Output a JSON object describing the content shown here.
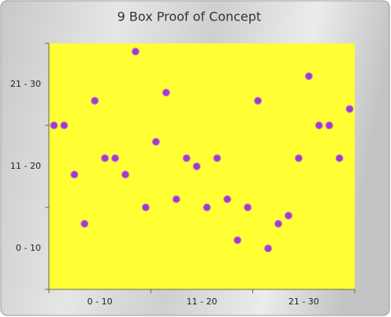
{
  "chart_data": {
    "type": "scatter",
    "title": "9 Box Proof of Concept",
    "x": [
      0.5,
      1.5,
      2.5,
      3.5,
      4.5,
      5.5,
      6.5,
      7.5,
      8.5,
      9.5,
      10.5,
      11.5,
      12.5,
      13.5,
      14.5,
      15.5,
      16.5,
      17.5,
      18.5,
      19.5,
      20.5,
      21.5,
      22.5,
      23.5,
      24.5,
      25.5,
      26.5,
      27.5,
      28.5,
      29.5
    ],
    "values": [
      20,
      20,
      14,
      8,
      23,
      16,
      16,
      14,
      29,
      10,
      18,
      24,
      11,
      16,
      15,
      10,
      16,
      11,
      6,
      10,
      23,
      5,
      8,
      9,
      16,
      26,
      20,
      20,
      16,
      22
    ],
    "color": "#a23cc6",
    "plot_color": "#ffff33",
    "xlim": [
      0,
      30
    ],
    "ylim": [
      0,
      30
    ],
    "xticks": [
      0,
      10,
      20,
      30
    ],
    "yticks": [
      0,
      10,
      20,
      30
    ],
    "x_band_labels": [
      "0 - 10",
      "11 - 20",
      "21 - 30"
    ],
    "y_band_labels": [
      "0 - 10",
      "11 - 20",
      "21 - 30"
    ],
    "grid": false
  }
}
